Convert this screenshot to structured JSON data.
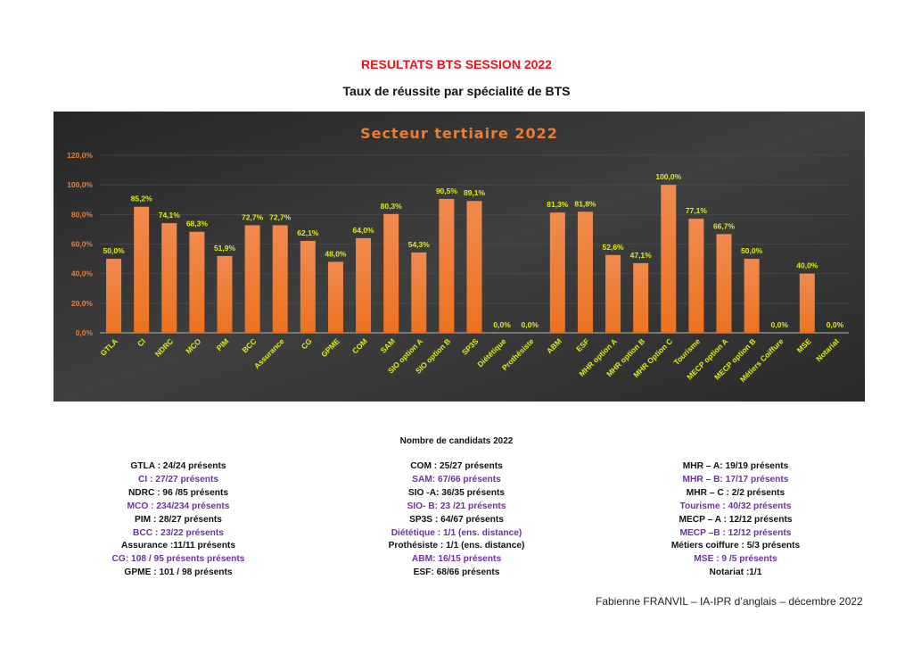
{
  "header": {
    "title": "RESULTATS BTS SESSION 2022",
    "subtitle": "Taux de réussite par spécialité de BTS"
  },
  "colors": {
    "title": "#e8141c",
    "bar": "#ed7d31",
    "label": "#e0ec18",
    "axis": "#ed7d31",
    "purple": "#7030a0",
    "panel": "#2e2e2e"
  },
  "chart_data": {
    "type": "bar",
    "title": "Secteur tertiaire 2022",
    "xlabel": "",
    "ylabel": "",
    "ylim": [
      0,
      120
    ],
    "yticks": [
      "0,0%",
      "20,0%",
      "40,0%",
      "60,0%",
      "80,0%",
      "100,0%",
      "120,0%"
    ],
    "grid": true,
    "categories": [
      "GTLA",
      "CI",
      "NDRC",
      "MCO",
      "PIM",
      "BCC",
      "Assurance",
      "CG",
      "GPME",
      "COM",
      "SAM",
      "SIO option A",
      "SIO option B",
      "SP3S",
      "Diététique",
      "Prothésiste",
      "ABM",
      "ESF",
      "MHR option A",
      "MHR option B",
      "MHR Option C",
      "Tourisme",
      "MECP option A",
      "MECP option B",
      "Métiers Coiffure",
      "MSE",
      "Notariat"
    ],
    "values": [
      50.0,
      85.2,
      74.1,
      68.3,
      51.9,
      72.7,
      72.7,
      62.1,
      48.0,
      64.0,
      80.3,
      54.3,
      90.5,
      89.1,
      0.0,
      0.0,
      81.3,
      81.8,
      52.6,
      47.1,
      100.0,
      77.1,
      66.7,
      50.0,
      0.0,
      40.0,
      0.0
    ],
    "labels": [
      "50,0%",
      "85,2%",
      "74,1%",
      "68,3%",
      "51,9%",
      "72,7%",
      "72,7%",
      "62,1%",
      "48,0%",
      "64,0%",
      "80,3%",
      "54,3%",
      "90,5%",
      "89,1%",
      "0,0%",
      "0,0%",
      "81,3%",
      "81,8%",
      "52,6%",
      "47,1%",
      "100,0%",
      "77,1%",
      "66,7%",
      "50,0%",
      "0,0%",
      "40,0%",
      "0,0%"
    ]
  },
  "candidates": {
    "title": "Nombre de candidats 2022",
    "columns": [
      [
        "GTLA : 24/24 présents",
        "CI : 27/27 présents",
        "NDRC : 96 /85 présents",
        "MCO : 234/234 présents",
        "PIM : 28/27 présents",
        "BCC : 23/22 présents",
        "Assurance :11/11 présents",
        "CG: 108 / 95 présents présents",
        "GPME : 101 / 98 présents"
      ],
      [
        "COM : 25/27 présents",
        "SAM: 67/66 présents",
        "SIO -A: 36/35 présents",
        "SIO- B: 23 /21 présents",
        "SP3S : 64/67 présents",
        "Diététique : 1/1 (ens. distance)",
        "Prothésiste : 1/1 (ens. distance)",
        "ABM: 16/15 présents",
        "ESF: 68/66 présents"
      ],
      [
        "MHR – A: 19/19 présents",
        "MHR – B: 17/17 présents",
        "MHR – C : 2/2 présents",
        "Tourisme : 40/32 présents",
        "MECP – A : 12/12 présents",
        "MECP –B : 12/12 présents",
        "Métiers coiffure : 5/3 présents",
        "MSE : 9 /5 présents",
        "Notariat :1/1"
      ]
    ]
  },
  "footer": "Fabienne FRANVIL – IA-IPR d’anglais – décembre 2022"
}
